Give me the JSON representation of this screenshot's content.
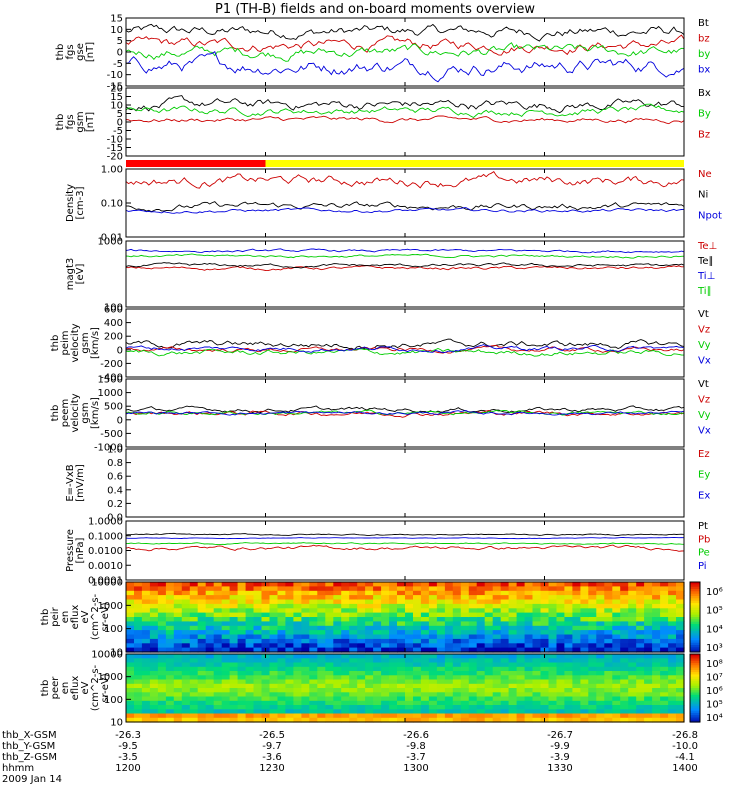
{
  "title": "P1 (TH-B) fields and on-board moments overview",
  "date": "2009 Jan 14",
  "chart_data": [
    {
      "type": "line",
      "panel": "fgs_gse",
      "ylabel": [
        "thb",
        "fgs",
        "gse",
        "[nT]"
      ],
      "ylim": [
        -15,
        15
      ],
      "yticks": [
        "15",
        "10",
        "5",
        "0",
        "-5",
        "-10",
        "-15"
      ],
      "series": [
        {
          "name": "Bt",
          "color": "#000000",
          "base": 9,
          "amp": 3
        },
        {
          "name": "bz",
          "color": "#cc0000",
          "base": 3,
          "amp": 3
        },
        {
          "name": "by",
          "color": "#00cc00",
          "base": 0,
          "amp": 3
        },
        {
          "name": "bx",
          "color": "#0000dd",
          "base": -6,
          "amp": 4
        }
      ]
    },
    {
      "type": "line",
      "panel": "fgs_gsm",
      "ylabel": [
        "thb",
        "fgs",
        "gsm",
        "[nT]"
      ],
      "ylim": [
        -25,
        20
      ],
      "yticks": [
        "20",
        "15",
        "10",
        "5",
        "0",
        "-5",
        "-10",
        "-15",
        "-20"
      ],
      "series": [
        {
          "name": "Bx",
          "color": "#000000",
          "base": 9,
          "amp": 4
        },
        {
          "name": "By",
          "color": "#00cc00",
          "base": 5,
          "amp": 3
        },
        {
          "name": "Bz",
          "color": "#cc0000",
          "base": -1,
          "amp": 2
        }
      ]
    },
    {
      "type": "bar",
      "panel": "mode_bar",
      "segments": [
        {
          "from": 0,
          "to": 0.25,
          "color": "#ff0000"
        },
        {
          "from": 0.25,
          "to": 1,
          "color": "#ffff00"
        }
      ]
    },
    {
      "type": "line",
      "panel": "density",
      "ylabel": [
        "Density",
        "[cm-3]"
      ],
      "ylim": [
        0.01,
        1.0
      ],
      "log": true,
      "yticks": [
        "1.00",
        "0.10",
        "0.01"
      ],
      "series": [
        {
          "name": "Ne",
          "color": "#cc0000",
          "base": 0.45,
          "amp": 0.3
        },
        {
          "name": "Ni",
          "color": "#000000",
          "base": 0.08,
          "amp": 0.2
        },
        {
          "name": "Npot",
          "color": "#0000dd",
          "base": 0.06,
          "amp": 0.1
        }
      ]
    },
    {
      "type": "line",
      "panel": "temperature",
      "ylabel": [
        "magt3",
        "[eV]"
      ],
      "ylim": [
        100,
        10000
      ],
      "log": true,
      "yticks": [
        "1000",
        "100"
      ],
      "series": [
        {
          "name": "Te⊥",
          "color": "#cc0000",
          "base": 1500,
          "amp": 0.1
        },
        {
          "name": "Te∥",
          "color": "#000000",
          "base": 1800,
          "amp": 0.1
        },
        {
          "name": "Ti⊥",
          "color": "#0000dd",
          "base": 5000,
          "amp": 0.08
        },
        {
          "name": "Ti∥",
          "color": "#00cc00",
          "base": 3500,
          "amp": 0.08
        }
      ]
    },
    {
      "type": "line",
      "panel": "peim_velocity",
      "ylabel": [
        "thb",
        "peim",
        "velocity",
        "gsm",
        "[km/s]"
      ],
      "ylim": [
        -400,
        600
      ],
      "yticks": [
        "600",
        "400",
        "200",
        "0",
        "-200",
        "-400"
      ],
      "series": [
        {
          "name": "Vt",
          "color": "#000000",
          "base": 80,
          "amp": 60
        },
        {
          "name": "Vz",
          "color": "#cc0000",
          "base": 0,
          "amp": 40
        },
        {
          "name": "Vy",
          "color": "#00cc00",
          "base": -40,
          "amp": 50
        },
        {
          "name": "Vx",
          "color": "#0000dd",
          "base": 20,
          "amp": 40
        }
      ]
    },
    {
      "type": "line",
      "panel": "peem_velocity",
      "ylabel": [
        "thb",
        "peem",
        "velocity",
        "gsm",
        "[km/s]"
      ],
      "ylim": [
        -1500,
        1500
      ],
      "yticks": [
        "1500",
        "1000",
        "500",
        "0",
        "-500",
        "-1000"
      ],
      "series": [
        {
          "name": "Vt",
          "color": "#000000",
          "base": 150,
          "amp": 120
        },
        {
          "name": "Vz",
          "color": "#cc0000",
          "base": 0,
          "amp": 120
        },
        {
          "name": "Vy",
          "color": "#00cc00",
          "base": 0,
          "amp": 100
        },
        {
          "name": "Vx",
          "color": "#0000dd",
          "base": 0,
          "amp": 80
        }
      ]
    },
    {
      "type": "line",
      "panel": "efield",
      "ylabel": [
        "E=-VxB",
        "[mV/m]"
      ],
      "ylim": [
        0,
        1
      ],
      "yticks": [
        "1.0",
        "0.8",
        "0.6",
        "0.4",
        "0.2",
        "0.0"
      ],
      "series": [
        {
          "name": "Ez",
          "color": "#cc0000"
        },
        {
          "name": "Ey",
          "color": "#00cc00"
        },
        {
          "name": "Ex",
          "color": "#0000dd"
        }
      ]
    },
    {
      "type": "line",
      "panel": "pressure",
      "ylabel": [
        "Pressure",
        "[nPa]"
      ],
      "ylim": [
        0.0001,
        1.0
      ],
      "log": true,
      "yticks": [
        "1.0000",
        "0.1000",
        "0.0100",
        "0.0010",
        "0.0001"
      ],
      "series": [
        {
          "name": "Pt",
          "color": "#000000",
          "base": 0.12,
          "amp": 0.1
        },
        {
          "name": "Pb",
          "color": "#cc0000",
          "base": 0.015,
          "amp": 0.25
        },
        {
          "name": "Pe",
          "color": "#00cc00",
          "base": 0.03,
          "amp": 0.1
        },
        {
          "name": "Pi",
          "color": "#0000dd",
          "base": 0.07,
          "amp": 0.05
        }
      ]
    },
    {
      "type": "heatmap",
      "panel": "peir_spectrogram",
      "ylabel": [
        "thb",
        "peir",
        "en",
        "eflux",
        "eV",
        "(cm^2-s-",
        "sr-eV)"
      ],
      "ylim": [
        10,
        10000
      ],
      "log": true,
      "yticks": [
        "10000",
        "1000",
        "100",
        "10"
      ],
      "colorbar_ticks": [
        "10⁶",
        "10⁵",
        "10⁴",
        "10³"
      ]
    },
    {
      "type": "heatmap",
      "panel": "peer_spectrogram",
      "ylabel": [
        "thb",
        "peer",
        "en",
        "eflux",
        "eV",
        "(cm^2-s-",
        "sr-eV)"
      ],
      "ylim": [
        10,
        10000
      ],
      "log": true,
      "yticks": [
        "10000",
        "1000",
        "100",
        "10"
      ],
      "colorbar_ticks": [
        "10⁸",
        "10⁷",
        "10⁶",
        "10⁵",
        "10⁴"
      ]
    }
  ],
  "footer": {
    "rows": [
      {
        "label": "thb_X-GSM",
        "values": [
          "-26.3",
          "-26.5",
          "-26.6",
          "-26.7",
          "-26.8"
        ]
      },
      {
        "label": "thb_Y-GSM",
        "values": [
          "-9.5",
          "-9.7",
          "-9.8",
          "-9.9",
          "-10.0"
        ]
      },
      {
        "label": "thb_Z-GSM",
        "values": [
          "-3.5",
          "-3.6",
          "-3.7",
          "-3.9",
          "-4.1"
        ]
      },
      {
        "label": "hhmm",
        "values": [
          "1200",
          "1230",
          "1300",
          "1330",
          "1400"
        ]
      }
    ]
  }
}
